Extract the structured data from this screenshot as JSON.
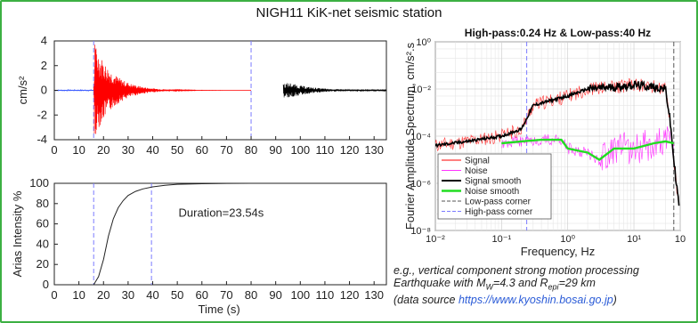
{
  "title": "NIGH11 KiK-net seismic station",
  "caption": {
    "line1": "e.g., vertical component strong motion processing",
    "line2_prefix": "Earthquake with M",
    "line2_mw_sub": "W",
    "line2_mid": "=4.3 and R",
    "line2_r_sub": "epi",
    "line2_suffix": "=29 km",
    "line3_prefix": "(data source ",
    "line3_url": "https://www.kyoshin.bosai.go.jp",
    "line3_suffix": ")"
  },
  "colors": {
    "frame": "#3cb043",
    "signal": "#ff0000",
    "noise": "#ff33ff",
    "signal_smooth": "#000000",
    "noise_smooth": "#22dd22",
    "corner": "#7b7bff",
    "accel_post": "#000000",
    "axes": "#222222"
  },
  "chart_data": [
    {
      "type": "line",
      "name": "acceleration",
      "ylabel": "cm/s²",
      "xlim": [
        0,
        135
      ],
      "ylim": [
        -4,
        4
      ],
      "x_ticks": [
        "0",
        "10",
        "20",
        "30",
        "40",
        "50",
        "60",
        "70",
        "80",
        "90",
        "100",
        "110",
        "120",
        "130"
      ],
      "y_ticks": [
        "4",
        "2",
        "0",
        "-2",
        "-4"
      ],
      "vlines": [
        {
          "x": 16,
          "style": "dashed"
        },
        {
          "x": 80,
          "style": "dashed"
        }
      ],
      "segments": [
        {
          "name": "pre-event",
          "x_range": [
            0,
            16
          ],
          "amplitude": 0.05,
          "color": "blue"
        },
        {
          "name": "signal",
          "x_range": [
            16,
            80
          ],
          "peak": [
            16.5,
            3.7
          ],
          "trough": [
            16.3,
            -3.5
          ],
          "color": "red"
        },
        {
          "name": "noise window",
          "x_range": [
            93,
            135
          ],
          "amplitude": 0.6,
          "color": "black"
        }
      ]
    },
    {
      "type": "line",
      "name": "arias intensity",
      "xlabel": "Time (s)",
      "ylabel": "Arias Intensity %",
      "xlim": [
        0,
        135
      ],
      "ylim": [
        0,
        100
      ],
      "x_ticks": [
        "0",
        "10",
        "20",
        "30",
        "40",
        "50",
        "60",
        "70",
        "80",
        "90",
        "100",
        "110",
        "120",
        "130"
      ],
      "y_ticks": [
        "100",
        "80",
        "60",
        "40",
        "20",
        "0"
      ],
      "annotation": "Duration=23.54s",
      "vlines": [
        {
          "x": 16,
          "style": "dashed"
        },
        {
          "x": 39.5,
          "style": "dashed"
        }
      ],
      "x": [
        16,
        18,
        20,
        22,
        24,
        26,
        28,
        30,
        33,
        36,
        40,
        45,
        50,
        60,
        70,
        80
      ],
      "values": [
        0,
        8,
        25,
        48,
        65,
        76,
        83,
        88,
        92,
        94.5,
        96.5,
        98,
        99,
        99.6,
        99.9,
        100
      ]
    },
    {
      "type": "line",
      "name": "fourier spectrum",
      "title": "High-pass:0.24 Hz & Low-pass:40 Hz",
      "xlabel": "Frequency, Hz",
      "ylabel": "Fourier Amplitude Spectrum, cm/s².s",
      "xscale": "log",
      "yscale": "log",
      "xlim": [
        0.01,
        50
      ],
      "ylim": [
        1e-08,
        1
      ],
      "x_ticks": [
        "10⁻²",
        "10⁻¹",
        "10⁰",
        "10¹",
        "10"
      ],
      "y_ticks": [
        "10⁰",
        "10⁻²",
        "10⁻⁴",
        "10⁻⁶",
        "10⁻⁸"
      ],
      "vlines": [
        {
          "x": 0.24,
          "name": "High-pass corner"
        },
        {
          "x": 40,
          "name": "Low-pass corner"
        }
      ],
      "legend": {
        "position": "bottom-left",
        "entries": [
          "Signal",
          "Noise",
          "Signal smooth",
          "Noise smooth",
          "Low-pass corner",
          "High-pass corner"
        ]
      },
      "series": [
        {
          "name": "Signal smooth",
          "x": [
            0.01,
            0.03,
            0.1,
            0.2,
            0.3,
            0.5,
            1,
            2,
            5,
            10,
            20,
            30,
            35,
            40,
            45,
            50
          ],
          "y": [
            4e-05,
            6e-05,
            0.0001,
            0.0002,
            0.002,
            0.003,
            0.005,
            0.01,
            0.012,
            0.015,
            0.012,
            0.01,
            0.0005,
            1e-05,
            5e-07,
            5e-08
          ]
        },
        {
          "name": "Noise smooth",
          "x": [
            0.1,
            0.2,
            0.4,
            0.8,
            1,
            2,
            3,
            5,
            8,
            10,
            15,
            20,
            30,
            40
          ],
          "y": [
            5e-05,
            6e-05,
            7e-05,
            7e-05,
            3e-05,
            2e-05,
            1e-05,
            3e-05,
            3e-05,
            3e-05,
            4e-05,
            5e-05,
            6e-05,
            5e-05
          ]
        }
      ]
    }
  ]
}
